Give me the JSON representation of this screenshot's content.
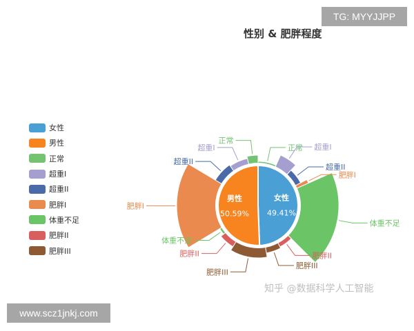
{
  "watermarks": {
    "tg": "TG: MYYJJPP",
    "url": "www.scz1jnkj.com",
    "zhihu": "知乎 @数据科学人工智能"
  },
  "chart_data": {
    "type": "pie",
    "title": "性别 & 肥胖程度",
    "legend_position": "left",
    "legend": [
      {
        "name": "女性",
        "color": "#4a9fd5"
      },
      {
        "name": "男性",
        "color": "#f7841f"
      },
      {
        "name": "正常",
        "color": "#73c371"
      },
      {
        "name": "超重I",
        "color": "#a59fcf"
      },
      {
        "name": "超重II",
        "color": "#4a6aa8"
      },
      {
        "name": "肥胖I",
        "color": "#ea8a4e"
      },
      {
        "name": "体重不足",
        "color": "#6bc465"
      },
      {
        "name": "肥胖II",
        "color": "#d95f5f"
      },
      {
        "name": "肥胖III",
        "color": "#8d5a33"
      }
    ],
    "inner_ring": [
      {
        "name": "女性",
        "value": 49.41,
        "label": "49.41%",
        "color": "#4a9fd5"
      },
      {
        "name": "男性",
        "value": 50.59,
        "label": "50.59%",
        "color": "#f7841f"
      }
    ],
    "outer_ring": [
      {
        "name": "正常",
        "value": 7.0,
        "color": "#73c371"
      },
      {
        "name": "超重I",
        "value": 5.5,
        "color": "#a59fcf"
      },
      {
        "name": "超重II",
        "value": 5.5,
        "color": "#4a6aa8"
      },
      {
        "name": "肥胖I",
        "value": 1.2,
        "color": "#ea8a4e"
      },
      {
        "name": "体重不足",
        "value": 20.0,
        "color": "#6bc465"
      },
      {
        "name": "肥胖II",
        "value": 5.0,
        "color": "#d95f5f"
      },
      {
        "name": "肥胖III",
        "value": 5.2,
        "color": "#8d5a33"
      },
      {
        "name": "肥胖III",
        "value": 12.0,
        "color": "#8d5a33"
      },
      {
        "name": "肥胖II",
        "value": 5.5,
        "color": "#d95f5f"
      },
      {
        "name": "体重不足",
        "value": 2.5,
        "color": "#6bc465"
      },
      {
        "name": "肥胖I",
        "value": 18.0,
        "color": "#ea8a4e"
      },
      {
        "name": "超重II",
        "value": 7.0,
        "color": "#4a6aa8"
      },
      {
        "name": "超重I",
        "value": 6.5,
        "color": "#a59fcf"
      },
      {
        "name": "正常",
        "value": 3.7,
        "color": "#73c371"
      }
    ],
    "outer_radius_scale": [
      64,
      80,
      70,
      80,
      117,
      68,
      70,
      76,
      70,
      65,
      118,
      72,
      70,
      73
    ]
  }
}
